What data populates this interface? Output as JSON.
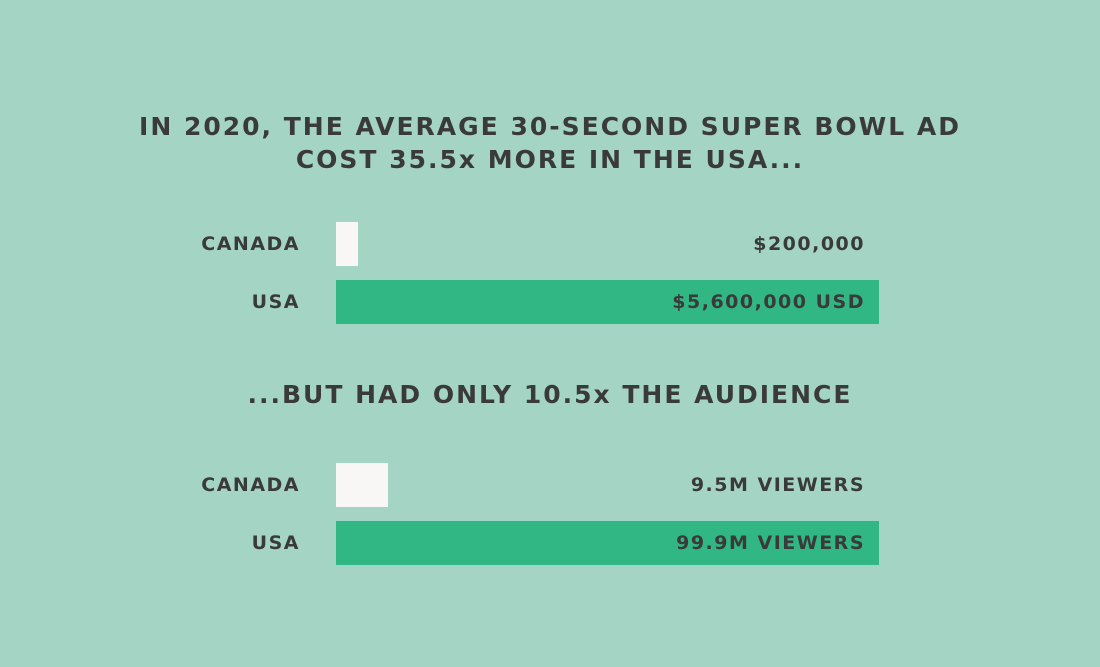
{
  "headline_1": {
    "line1": "IN 2020, THE AVERAGE 30-SECOND SUPER BOWL AD",
    "line2": "COST 35.5x MORE IN THE USA..."
  },
  "headline_2": {
    "line1": "...BUT HAD ONLY 10.5x THE AUDIENCE"
  },
  "colors": {
    "background": "#a4d5c4",
    "canada_bar": "#f8f7f5",
    "usa_bar": "#31b784",
    "text": "#3a3a3a"
  },
  "chart_data": [
    {
      "type": "bar",
      "orientation": "horizontal",
      "title": "IN 2020, THE AVERAGE 30-SECOND SUPER BOWL AD COST 35.5x MORE IN THE USA...",
      "categories": [
        "CANADA",
        "USA"
      ],
      "values": [
        200000,
        5600000
      ],
      "value_labels": [
        "$200,000",
        "$5,600,000 USD"
      ],
      "xlim": [
        0,
        5600000
      ]
    },
    {
      "type": "bar",
      "orientation": "horizontal",
      "title": "...BUT HAD ONLY 10.5x THE AUDIENCE",
      "categories": [
        "CANADA",
        "USA"
      ],
      "values": [
        9.5,
        99.9
      ],
      "value_labels": [
        "9.5M VIEWERS",
        "99.9M VIEWERS"
      ],
      "xlim": [
        0,
        99.9
      ]
    }
  ]
}
